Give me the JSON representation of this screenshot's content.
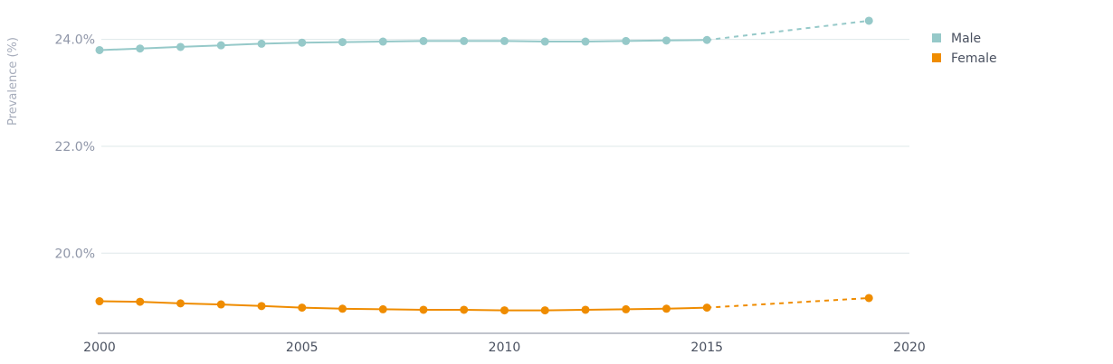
{
  "chart_data": {
    "type": "line",
    "ylabel": "Prevalence (%)",
    "xlim": [
      2000,
      2020
    ],
    "ylim": [
      18.5,
      24.4
    ],
    "x_ticks": [
      2000,
      2005,
      2010,
      2015,
      2020
    ],
    "x_tick_labels": [
      "2000",
      "2005",
      "2010",
      "2015",
      "2020"
    ],
    "y_ticks": [
      20,
      22,
      24
    ],
    "y_tick_labels": [
      "20.0%",
      "22.0%",
      "24.0%"
    ],
    "grid": "horizontal",
    "legend_position": "top-right",
    "series": [
      {
        "name": "Male",
        "color": "#96c9c9",
        "solid": {
          "x": [
            2000,
            2001,
            2002,
            2003,
            2004,
            2005,
            2006,
            2007,
            2008,
            2009,
            2010,
            2011,
            2012,
            2013,
            2014,
            2015
          ],
          "y": [
            23.8,
            23.83,
            23.86,
            23.89,
            23.92,
            23.94,
            23.95,
            23.96,
            23.97,
            23.97,
            23.97,
            23.96,
            23.96,
            23.97,
            23.98,
            23.99
          ]
        },
        "projected": {
          "x": [
            2015,
            2019
          ],
          "y": [
            23.99,
            24.35
          ]
        }
      },
      {
        "name": "Female",
        "color": "#ef8c00",
        "solid": {
          "x": [
            2000,
            2001,
            2002,
            2003,
            2004,
            2005,
            2006,
            2007,
            2008,
            2009,
            2010,
            2011,
            2012,
            2013,
            2014,
            2015
          ],
          "y": [
            19.1,
            19.09,
            19.06,
            19.04,
            19.01,
            18.98,
            18.96,
            18.95,
            18.94,
            18.94,
            18.93,
            18.93,
            18.94,
            18.95,
            18.96,
            18.98
          ]
        },
        "projected": {
          "x": [
            2015,
            2019
          ],
          "y": [
            18.98,
            19.16
          ]
        }
      }
    ]
  }
}
